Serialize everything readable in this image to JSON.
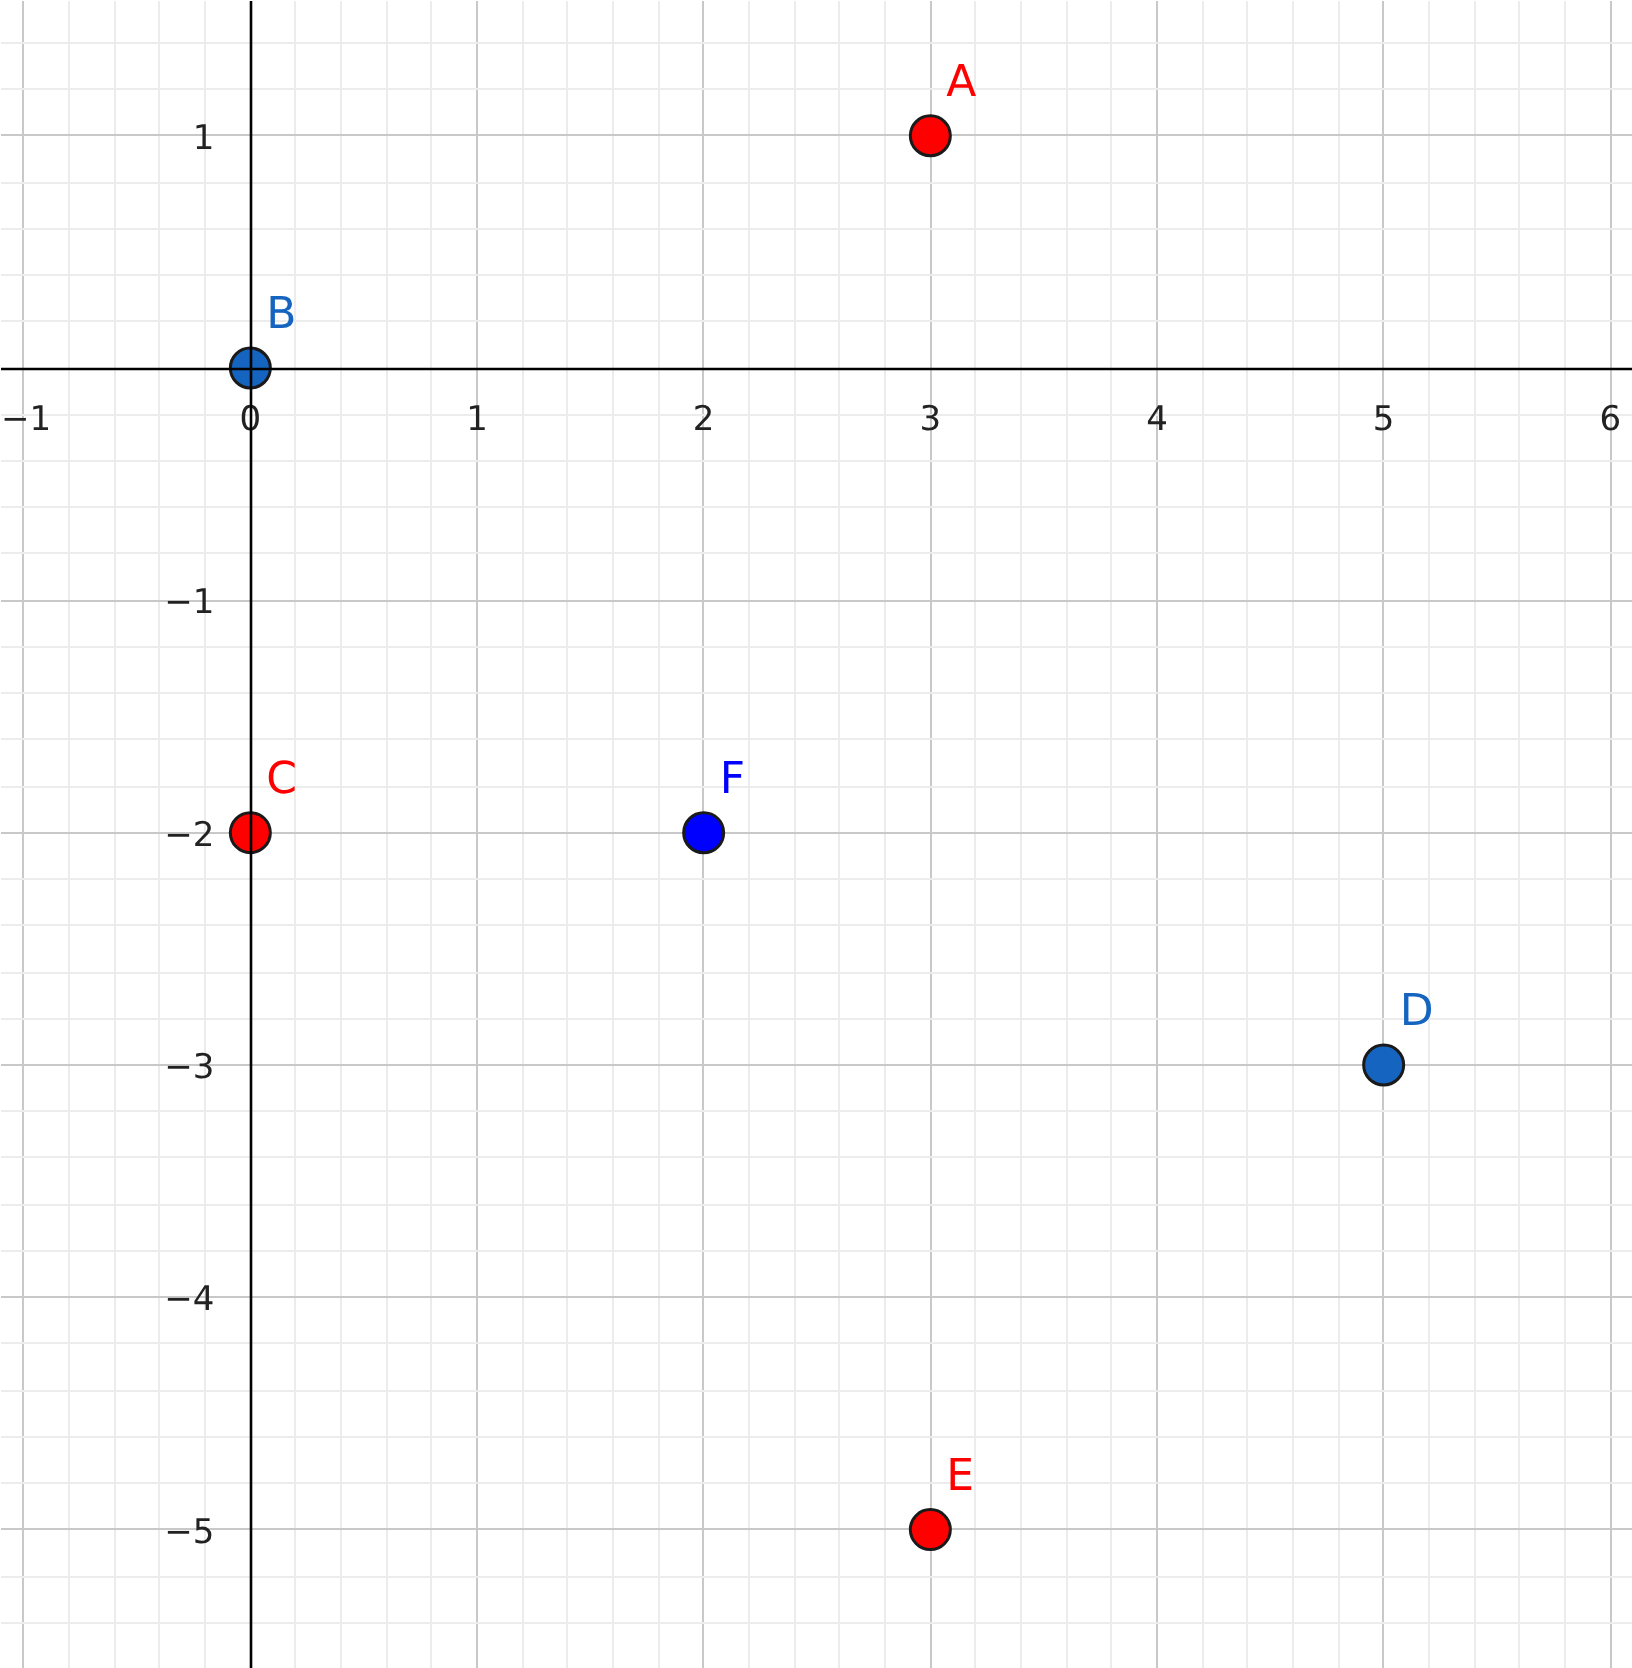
{
  "chart_data": {
    "type": "scatter",
    "marker": "circle",
    "grid": true,
    "xlim": [
      -1.1,
      6.1
    ],
    "ylim": [
      -5.6,
      1.58
    ],
    "xticks": [
      {
        "value": -1,
        "label": "−1"
      },
      0,
      1,
      2,
      3,
      4,
      5,
      6
    ],
    "yticks": [
      {
        "value": -5,
        "label": "−5"
      },
      {
        "value": -4,
        "label": "−4"
      },
      {
        "value": -3,
        "label": "−3"
      },
      {
        "value": -2,
        "label": "−2"
      },
      {
        "value": -1,
        "label": "−1"
      },
      1
    ],
    "series": [
      {
        "name": "A",
        "color": "#ff0000",
        "x": [
          3
        ],
        "values": [
          1
        ]
      },
      {
        "name": "B",
        "color": "#1565c0",
        "x": [
          0
        ],
        "values": [
          0
        ]
      },
      {
        "name": "C",
        "color": "#ff0000",
        "x": [
          0
        ],
        "values": [
          -2
        ]
      },
      {
        "name": "D",
        "color": "#1565c0",
        "x": [
          5
        ],
        "values": [
          -3
        ]
      },
      {
        "name": "E",
        "color": "#ff0000",
        "x": [
          3
        ],
        "values": [
          -5
        ]
      },
      {
        "name": "F",
        "color": "#0000ff",
        "x": [
          2
        ],
        "values": [
          -2
        ]
      }
    ]
  }
}
